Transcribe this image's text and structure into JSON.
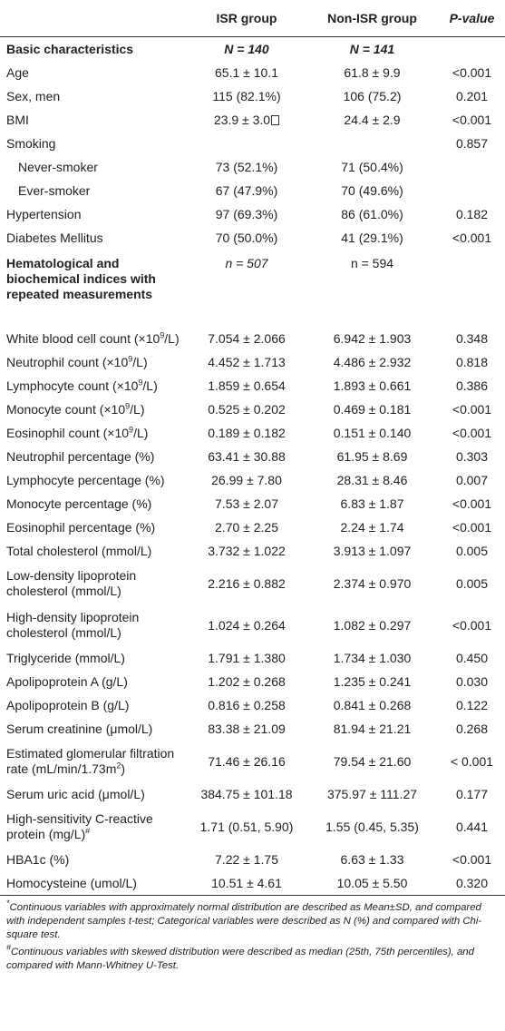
{
  "header": {
    "col1": "",
    "col2": "ISR group",
    "col3": "Non-ISR group",
    "col4": "P-value"
  },
  "basic": {
    "label": "Basic characteristics",
    "n_isr": "N = 140",
    "n_non": "N = 141"
  },
  "rows_basic": [
    {
      "label": "Age",
      "isr": "65.1 ± 10.1",
      "non": "61.8 ± 9.9",
      "p": "<0.001"
    },
    {
      "label": "Sex, men",
      "isr": "115 (82.1%)",
      "non": "106 (75.2)",
      "p": "0.201"
    },
    {
      "label": "BMI",
      "isr": "23.9 ± 3.0",
      "non": "24.4 ± 2.9",
      "p": "<0.001"
    },
    {
      "label": "Smoking",
      "isr": "",
      "non": "",
      "p": "0.857"
    },
    {
      "label": "Never-smoker",
      "isr": "73 (52.1%)",
      "non": "71 (50.4%)",
      "p": ""
    },
    {
      "label": "Ever-smoker",
      "isr": "67 (47.9%)",
      "non": "70 (49.6%)",
      "p": ""
    },
    {
      "label": "Hypertension",
      "isr": "97 (69.3%)",
      "non": "86 (61.0%)",
      "p": "0.182"
    },
    {
      "label": "Diabetes Mellitus",
      "isr": "70 (50.0%)",
      "non": "41 (29.1%)",
      "p": "<0.001"
    }
  ],
  "hema": {
    "label": "Hematological and biochemical indices with repeated measurements",
    "n_isr": "n = 507",
    "n_non": "n = 594"
  },
  "rows_hema": [
    {
      "label": "White blood cell count (×10",
      "sup": "9",
      "tail": "/L)",
      "isr": "7.054 ± 2.066",
      "non": "6.942 ± 1.903",
      "p": "0.348"
    },
    {
      "label": "Neutrophil count (×10",
      "sup": "9",
      "tail": "/L)",
      "isr": "4.452 ± 1.713",
      "non": "4.486 ± 2.932",
      "p": "0.818"
    },
    {
      "label": "Lymphocyte count (×10",
      "sup": "9",
      "tail": "/L)",
      "isr": "1.859 ± 0.654",
      "non": "1.893 ± 0.661",
      "p": "0.386"
    },
    {
      "label": "Monocyte count (×10",
      "sup": "9",
      "tail": "/L)",
      "isr": "0.525 ± 0.202",
      "non": "0.469 ± 0.181",
      "p": "<0.001"
    },
    {
      "label": "Eosinophil count (×10",
      "sup": "9",
      "tail": "/L)",
      "isr": "0.189 ± 0.182",
      "non": "0.151 ± 0.140",
      "p": "<0.001"
    },
    {
      "label": "Neutrophil percentage (%)",
      "sup": "",
      "tail": "",
      "isr": "63.41 ± 30.88",
      "non": "61.95 ± 8.69",
      "p": "0.303"
    },
    {
      "label": "Lymphocyte percentage (%)",
      "sup": "",
      "tail": "",
      "isr": "26.99 ± 7.80",
      "non": "28.31 ± 8.46",
      "p": "0.007"
    },
    {
      "label": "Monocyte percentage (%)",
      "sup": "",
      "tail": "",
      "isr": "7.53 ± 2.07",
      "non": "6.83 ± 1.87",
      "p": "<0.001"
    },
    {
      "label": "Eosinophil percentage (%)",
      "sup": "",
      "tail": "",
      "isr": "2.70 ± 2.25",
      "non": "2.24 ± 1.74",
      "p": "<0.001"
    },
    {
      "label": "Total cholesterol (mmol/L)",
      "sup": "",
      "tail": "",
      "isr": "3.732 ± 1.022",
      "non": "3.913 ± 1.097",
      "p": "0.005"
    },
    {
      "label": "Low-density lipoprotein cholesterol (mmol/L)",
      "sup": "",
      "tail": "",
      "isr": "2.216 ± 0.882",
      "non": "2.374 ± 0.970",
      "p": "0.005"
    },
    {
      "label": "High-density lipoprotein cholesterol (mmol/L)",
      "sup": "",
      "tail": "",
      "isr": "1.024 ± 0.264",
      "non": "1.082 ± 0.297",
      "p": "<0.001"
    },
    {
      "label": "Triglyceride (mmol/L)",
      "sup": "",
      "tail": "",
      "isr": "1.791 ± 1.380",
      "non": "1.734 ± 1.030",
      "p": "0.450"
    },
    {
      "label": "Apolipoprotein A (g/L)",
      "sup": "",
      "tail": "",
      "isr": "1.202 ± 0.268",
      "non": "1.235 ± 0.241",
      "p": "0.030"
    },
    {
      "label": "Apolipoprotein B (g/L)",
      "sup": "",
      "tail": "",
      "isr": "0.816 ± 0.258",
      "non": "0.841 ± 0.268",
      "p": "0.122"
    },
    {
      "label": "Serum creatinine (μmol/L)",
      "sup": "",
      "tail": "",
      "isr": "83.38 ± 21.09",
      "non": "81.94 ± 21.21",
      "p": "0.268"
    },
    {
      "label": "Estimated glomerular filtration rate (mL/min/1.73m",
      "sup": "2",
      "tail": ")",
      "isr": "71.46 ± 26.16",
      "non": "79.54 ± 21.60",
      "p": "< 0.001"
    },
    {
      "label": "Serum uric acid (μmol/L)",
      "sup": "",
      "tail": "",
      "isr": "384.75 ± 101.18",
      "non": "375.97 ± 111.27",
      "p": "0.177"
    },
    {
      "label": "High-sensitivity C-reactive protein (mg/L)",
      "sup": "#",
      "tail": "",
      "isr": "1.71 (0.51, 5.90)",
      "non": "1.55 (0.45, 5.35)",
      "p": "0.441"
    },
    {
      "label": "HBA1c (%)",
      "sup": "",
      "tail": "",
      "isr": "7.22 ± 1.75",
      "non": "6.63 ± 1.33",
      "p": "<0.001"
    },
    {
      "label": "Homocysteine (umol/L)",
      "sup": "",
      "tail": "",
      "isr": "10.51 ± 4.61",
      "non": "10.05 ± 5.50",
      "p": "0.320"
    }
  ],
  "notes": {
    "note1_mark": "*",
    "note1": "Continuous variables with approximately normal distribution are described as Mean±SD, and compared with independent samples t-test; Categorical variables were described as N (%) and compared with Chi-square test.",
    "note2_mark": "#",
    "note2": "Continuous variables with skewed distribution were described as median (25th, 75th percentiles), and compared with Mann-Whitney U-Test."
  }
}
